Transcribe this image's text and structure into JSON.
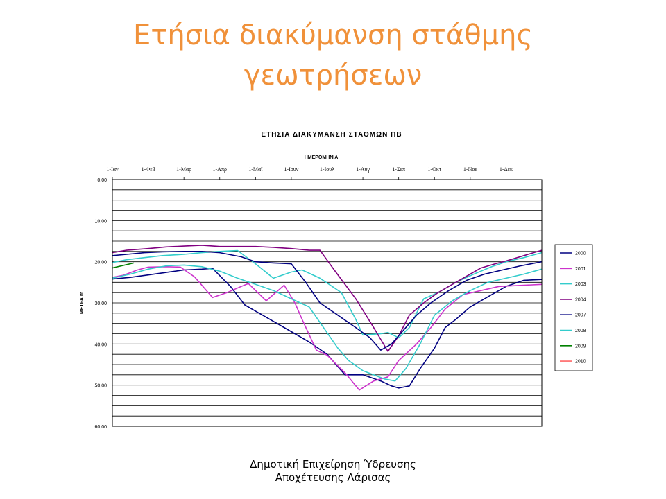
{
  "slide": {
    "title_line1": "Ετήσια διακύμανση στάθμης",
    "title_line2": "γεωτρήσεων"
  },
  "footer": {
    "line1": "Δημοτική Επιχείρηση Ύδρευσης",
    "line2": "Αποχέτευσης Λάρισας"
  },
  "chart_data": {
    "type": "line",
    "title": "ΕΤΗΣΙΑ ΔΙΑΚΥΜΑΝΣΗ ΣΤΑΘΜΩΝ ΠΒ",
    "xlabel": "ΗΜΕΡΟΜΗΝΙΑ",
    "ylabel": "ΜΕΤΡΑ  m",
    "x_axis_position": "top",
    "y_reversed": true,
    "xlim": [
      0,
      12
    ],
    "ylim": [
      0,
      60
    ],
    "x_tick_labels": [
      "1-Ιαν",
      "1-Φεβ",
      "1-Μαρ",
      "1-Απρ",
      "1-Μαϊ",
      "1-Ιουν",
      "1-Ιουλ",
      "1-Αυγ",
      "1-Σεπ",
      "1-Οκτ",
      "1-Νοε",
      "1-Δεκ"
    ],
    "y_ticks": [
      0,
      10,
      20,
      30,
      40,
      50,
      60
    ],
    "y_tick_labels": [
      "0,00",
      "10,00",
      "20,00",
      "30,00",
      "40,00",
      "50,00",
      "60,00"
    ],
    "minor_grid_step": 2.5,
    "legend_position": "right",
    "series": [
      {
        "name": "2000",
        "color": "#000080",
        "points": [
          [
            0,
            24.2
          ],
          [
            0.5,
            23.8
          ],
          [
            1,
            23.2
          ],
          [
            1.5,
            22.6
          ],
          [
            2,
            22
          ],
          [
            2.5,
            21.8
          ],
          [
            2.8,
            21.6
          ],
          [
            3.3,
            26
          ],
          [
            3.7,
            30.5
          ],
          [
            4,
            32
          ],
          [
            4.5,
            34.5
          ],
          [
            5,
            37
          ],
          [
            5.5,
            39.5
          ],
          [
            6,
            42.5
          ],
          [
            6.5,
            47.5
          ],
          [
            7,
            47.5
          ],
          [
            7.5,
            49
          ],
          [
            7.8,
            50.2
          ],
          [
            8,
            50.7
          ],
          [
            8.3,
            50.2
          ],
          [
            8.6,
            46
          ],
          [
            9,
            41
          ],
          [
            9.3,
            36
          ],
          [
            9.6,
            34
          ],
          [
            10,
            31
          ],
          [
            10.5,
            28.5
          ],
          [
            11,
            26
          ],
          [
            11.5,
            24.5
          ],
          [
            12,
            24.3
          ],
          [
            12.5,
            23.8
          ]
        ]
      },
      {
        "name": "2001",
        "color": "#cc33cc",
        "points": [
          [
            0,
            23.8
          ],
          [
            0.3,
            23.3
          ],
          [
            0.7,
            22
          ],
          [
            1,
            21.3
          ],
          [
            1.5,
            21.2
          ],
          [
            1.9,
            21.3
          ],
          [
            2.3,
            23.7
          ],
          [
            2.8,
            28.7
          ],
          [
            3.2,
            27.5
          ],
          [
            3.6,
            26
          ],
          [
            3.8,
            25.3
          ],
          [
            4.3,
            29.5
          ],
          [
            4.8,
            25.7
          ],
          [
            5.1,
            30
          ],
          [
            5.3,
            34
          ],
          [
            5.7,
            41.5
          ],
          [
            6,
            42.7
          ],
          [
            6.5,
            47
          ],
          [
            6.9,
            51.2
          ],
          [
            7.3,
            49
          ],
          [
            7.7,
            48
          ],
          [
            8,
            44
          ],
          [
            8.5,
            40
          ],
          [
            8.9,
            36
          ],
          [
            9.3,
            31.5
          ],
          [
            9.8,
            28
          ],
          [
            10.3,
            27
          ],
          [
            10.8,
            26
          ],
          [
            11.3,
            25.8
          ],
          [
            12,
            25.5
          ]
        ]
      },
      {
        "name": "2003",
        "color": "#33cccc",
        "points": [
          [
            0,
            20.2
          ],
          [
            0.4,
            19.5
          ],
          [
            0.9,
            19
          ],
          [
            1.4,
            18.5
          ],
          [
            2,
            18.2
          ],
          [
            2.5,
            17.8
          ],
          [
            3,
            17.5
          ],
          [
            3.5,
            17.3
          ],
          [
            4,
            20.5
          ],
          [
            4.5,
            24
          ],
          [
            5,
            22.5
          ],
          [
            5.3,
            22
          ],
          [
            5.8,
            24
          ],
          [
            6.4,
            27.5
          ],
          [
            6.8,
            34
          ],
          [
            7,
            37.8
          ],
          [
            7.5,
            37.5
          ],
          [
            7.7,
            37.2
          ],
          [
            8,
            38.5
          ],
          [
            8.3,
            36
          ],
          [
            8.7,
            29
          ],
          [
            9.1,
            27.5
          ],
          [
            9.6,
            25
          ],
          [
            10.1,
            23
          ],
          [
            10.6,
            21.2
          ],
          [
            11,
            20
          ],
          [
            11.5,
            19
          ],
          [
            12,
            17.8
          ]
        ]
      },
      {
        "name": "2004",
        "color": "#800080",
        "points": [
          [
            0,
            17.8
          ],
          [
            0.4,
            17.2
          ],
          [
            1,
            16.8
          ],
          [
            1.5,
            16.4
          ],
          [
            2,
            16.2
          ],
          [
            2.5,
            16
          ],
          [
            3,
            16.3
          ],
          [
            3.5,
            16.3
          ],
          [
            4,
            16.3
          ],
          [
            4.5,
            16.5
          ],
          [
            5,
            16.8
          ],
          [
            5.5,
            17.2
          ],
          [
            5.8,
            17.2
          ],
          [
            6.2,
            22
          ],
          [
            6.8,
            29
          ],
          [
            7.3,
            36
          ],
          [
            7.7,
            41.8
          ],
          [
            8,
            38
          ],
          [
            8.3,
            33
          ],
          [
            8.7,
            30
          ],
          [
            9.1,
            27.5
          ],
          [
            9.6,
            25
          ],
          [
            10,
            23
          ],
          [
            10.3,
            21.5
          ],
          [
            10.7,
            20.5
          ],
          [
            11,
            19.8
          ],
          [
            11.5,
            18.5
          ],
          [
            12,
            17.2
          ]
        ]
      },
      {
        "name": "2007",
        "color": "#000080",
        "points": [
          [
            0,
            18.5
          ],
          [
            0.4,
            18.2
          ],
          [
            0.9,
            17.8
          ],
          [
            1.4,
            17.6
          ],
          [
            2,
            17.5
          ],
          [
            2.5,
            17.5
          ],
          [
            3,
            17.8
          ],
          [
            3.6,
            18.8
          ],
          [
            4,
            20
          ],
          [
            4.5,
            20.3
          ],
          [
            5,
            20.5
          ],
          [
            5.4,
            25
          ],
          [
            5.8,
            30
          ],
          [
            6.3,
            33
          ],
          [
            6.8,
            36
          ],
          [
            7.2,
            38.5
          ],
          [
            7.5,
            41.5
          ],
          [
            7.8,
            40
          ],
          [
            8.1,
            37
          ],
          [
            8.5,
            33
          ],
          [
            8.9,
            30
          ],
          [
            9.4,
            27
          ],
          [
            9.9,
            24.5
          ],
          [
            10.4,
            23
          ],
          [
            10.9,
            22
          ],
          [
            11.4,
            21
          ],
          [
            12,
            20
          ]
        ]
      },
      {
        "name": "2008",
        "color": "#33cccc",
        "points": [
          [
            0,
            24
          ],
          [
            0.5,
            23
          ],
          [
            1,
            21.8
          ],
          [
            1.5,
            21
          ],
          [
            2,
            20.8
          ],
          [
            2.5,
            21.2
          ],
          [
            3,
            22.3
          ],
          [
            3.5,
            24
          ],
          [
            4,
            25.5
          ],
          [
            4.5,
            27
          ],
          [
            5,
            29
          ],
          [
            5.5,
            31
          ],
          [
            5.9,
            36
          ],
          [
            6.3,
            41
          ],
          [
            6.6,
            44
          ],
          [
            7,
            46.5
          ],
          [
            7.6,
            48.5
          ],
          [
            7.9,
            49
          ],
          [
            8.2,
            46
          ],
          [
            8.6,
            40
          ],
          [
            9,
            33
          ],
          [
            9.5,
            29.5
          ],
          [
            10,
            27
          ],
          [
            10.5,
            25
          ],
          [
            11,
            24
          ],
          [
            11.5,
            23
          ],
          [
            12,
            21.8
          ],
          [
            12.5,
            21.5
          ]
        ]
      },
      {
        "name": "2009",
        "color": "#008000",
        "points": [
          [
            0,
            21.5
          ],
          [
            0.6,
            20.3
          ]
        ]
      },
      {
        "name": "2010",
        "color": "#ff6666",
        "points": []
      }
    ]
  }
}
